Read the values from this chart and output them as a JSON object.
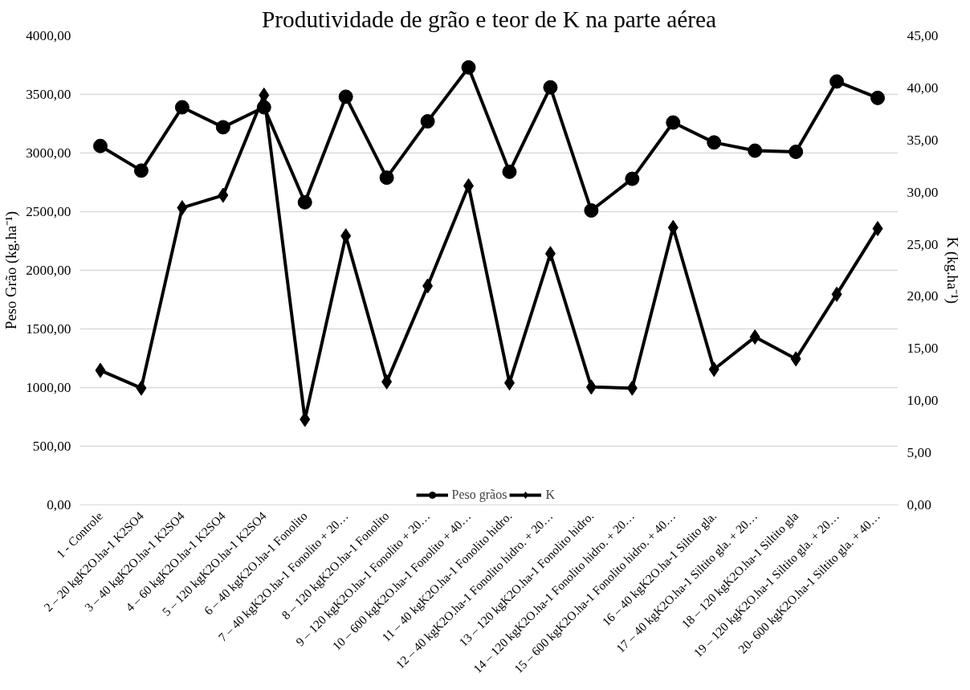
{
  "chart_data": {
    "type": "line",
    "title": "Produtividade de grão e teor de K na parte aérea",
    "ylabel": "Peso Grão (kg.ha⁻¹)",
    "y2label": "K (kg.ha⁻¹)",
    "categories": [
      "1 - Controle",
      "2 – 20 kgK2O.ha-1 K2SO4",
      "3 – 40 kgK2O.ha-1 K2SO4",
      "4 – 60 kgK2O.ha-1 K2SO4",
      "5 – 120 kgK2O.ha-1 K2SO4",
      "6 – 40 kgK2O.ha-1 Fonolito",
      "7 – 40 kgK2O.ha-1 Fonolito + 20…",
      "8 – 120 kgK2O.ha-1 Fonolito",
      "9 – 120 kgK2O.ha-1 Fonolito + 20…",
      "10 – 600 kgK2O.ha-1 Fonolito + 40…",
      "11 – 40 kgK2O.ha-1 Fonolito hidro.",
      "12 – 40 kgK2O.ha-1 Fonolito hidro. + 20…",
      "13 – 120 kgK2O.ha-1 Fonolito hidro.",
      "14 – 120 kgK2O.ha-1 Fonolito hidro. + 20…",
      "15 – 600 kgK2O.ha-1 Fonolito hidro. + 40…",
      "16 – 40 kgK2O.ha-1 Siltito gla.",
      "17 – 40 kgK2O.ha-1 Siltito gla. + 20…",
      "18 – 120 kgK2O.ha-1 Siltito gla",
      "19 – 120 kgK2O.ha-1 Siltito gla. + 20…",
      "20- 600 kgK2O.ha-1 Siltito gla. + 40…"
    ],
    "series": [
      {
        "name": "Peso grãos",
        "color": "#000000",
        "marker": "circle",
        "values": [
          3060,
          2850,
          3390,
          3220,
          3390,
          2580,
          3480,
          2790,
          3270,
          3730,
          2840,
          3560,
          2510,
          2780,
          3260,
          3090,
          3020,
          3010,
          3610,
          3470
        ]
      },
      {
        "name": "K",
        "color": "#000000",
        "marker": "diamond",
        "axis": "y2",
        "values": [
          12.9,
          11.2,
          28.5,
          29.7,
          39.3,
          8.2,
          25.8,
          11.8,
          21.0,
          30.6,
          11.7,
          24.1,
          11.3,
          11.2,
          26.6,
          13.0,
          16.1,
          14.0,
          20.2,
          26.5
        ]
      }
    ],
    "ylim": [
      0,
      4000
    ],
    "yticks": [
      {
        "value": 0,
        "label": "0,00"
      },
      {
        "value": 500,
        "label": "500,00"
      },
      {
        "value": 1000,
        "label": "1000,00"
      },
      {
        "value": 1500,
        "label": "1500,00"
      },
      {
        "value": 2000,
        "label": "2000,00"
      },
      {
        "value": 2500,
        "label": "2500,00"
      },
      {
        "value": 3000,
        "label": "3000,00"
      },
      {
        "value": 3500,
        "label": "3500,00"
      },
      {
        "value": 4000,
        "label": "4000,00"
      }
    ],
    "y2lim": [
      0,
      45
    ],
    "y2ticks": [
      {
        "value": 0,
        "label": "0,00"
      },
      {
        "value": 5,
        "label": "5,00"
      },
      {
        "value": 10,
        "label": "10,00"
      },
      {
        "value": 15,
        "label": "15,00"
      },
      {
        "value": 20,
        "label": "20,00"
      },
      {
        "value": 25,
        "label": "25,00"
      },
      {
        "value": 30,
        "label": "30,00"
      },
      {
        "value": 35,
        "label": "35,00"
      },
      {
        "value": 40,
        "label": "40,00"
      },
      {
        "value": 45,
        "label": "45,00"
      }
    ],
    "grid": "y",
    "legend": "bottom",
    "line_style": "solid"
  }
}
